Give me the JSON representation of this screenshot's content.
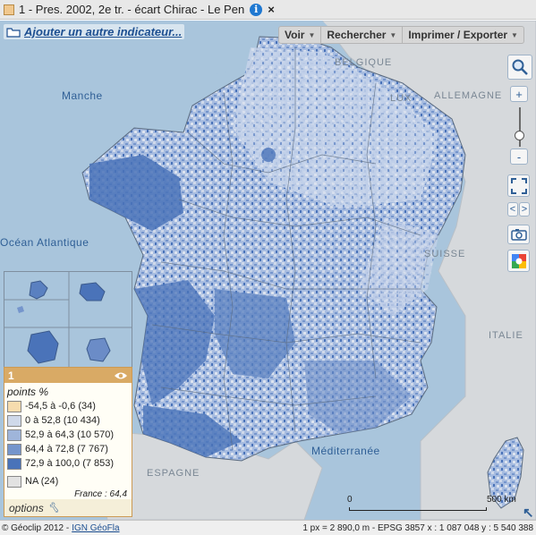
{
  "title": {
    "text": "1 - Pres. 2002, 2e tr. - écart Chirac - Le Pen",
    "info_icon": "i",
    "close_icon": "×"
  },
  "toolbar": {
    "add_indicator": "Ajouter un autre indicateur...",
    "menus": [
      "Voir",
      "Rechercher",
      "Imprimer / Exporter"
    ]
  },
  "map": {
    "labels": {
      "manche": "Manche",
      "ocean": "Océan Atlantique",
      "mediterranee": "Méditerranée",
      "belgique": "BELGIQUE",
      "lux": "LUX",
      "allemagne": "ALLEMAGNE",
      "suisse": "SUISSE",
      "italie": "ITALIE",
      "espagne": "ESPAGNE"
    }
  },
  "controls": {
    "zoom_in": "+",
    "zoom_out": "-",
    "prev": "<",
    "next": ">"
  },
  "legend": {
    "layer_number": "1",
    "unit": "points %",
    "classes": [
      {
        "label": "-54,5 à -0,6 (34)",
        "color": "#f6dcae"
      },
      {
        "label": "0 à 52,8 (10 434)",
        "color": "#cfd9ea"
      },
      {
        "label": "52,9 à 64,3 (10 570)",
        "color": "#9fb5da"
      },
      {
        "label": "64,4 à 72,8 (7 767)",
        "color": "#7595cc"
      },
      {
        "label": "72,9 à 100,0 (7 853)",
        "color": "#4a73b9"
      }
    ],
    "na": {
      "label": "NA (24)",
      "color": "#e2e2e2"
    },
    "france": "France : 64,4",
    "options": "options"
  },
  "scale": {
    "zero": "0",
    "max": "500 km"
  },
  "status": {
    "copyright": "© Géoclip 2012 -",
    "link": "IGN GéoFla",
    "right": "1 px = 2 890,0 m - EPSG 3857  x : 1 087 048   y : 5 540 388"
  },
  "colors": {
    "sea": "#a9c5dc",
    "neighbour_land": "#d6d9dc",
    "accent": "#d9aa65",
    "link": "#1d4f91"
  }
}
